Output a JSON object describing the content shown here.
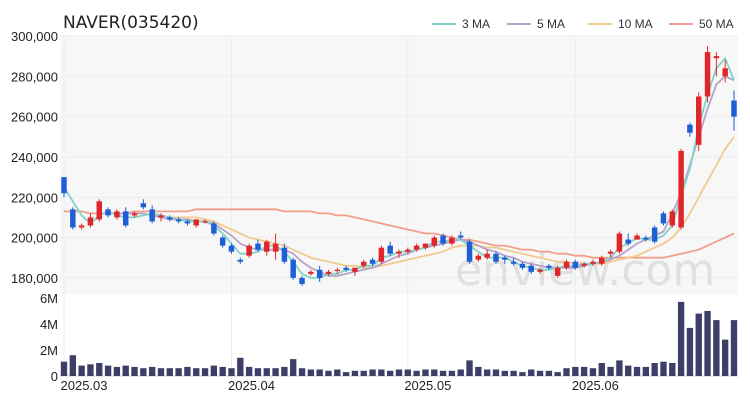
{
  "chart_data": {
    "type": "candlestick",
    "title": "NAVER(035420)",
    "watermark": "enview.com",
    "legend": [
      {
        "label": "3 MA",
        "color": "#7fd3c8"
      },
      {
        "label": "5 MA",
        "color": "#b7a3c9"
      },
      {
        "label": "10 MA",
        "color": "#f2c98e"
      },
      {
        "label": "50 MA",
        "color": "#f0a08a"
      }
    ],
    "legend_placement": "top-right",
    "price_axis": {
      "ylim": [
        172000,
        300000
      ],
      "ticks": [
        300000,
        280000,
        260000,
        240000,
        220000,
        200000,
        180000
      ],
      "tick_labels": [
        "300,000",
        "280,000",
        "260,000",
        "240,000",
        "220,000",
        "200,000",
        "180,000"
      ]
    },
    "volume_axis": {
      "ylim": [
        0,
        6000000
      ],
      "ticks": [
        0,
        2000000,
        4000000,
        6000000
      ],
      "tick_labels": [
        "0",
        "2M",
        "4M",
        "6M"
      ]
    },
    "x_tick_labels": [
      {
        "label": "2025.03",
        "index": 0
      },
      {
        "label": "2025.04",
        "index": 19
      },
      {
        "label": "2025.05",
        "index": 39
      },
      {
        "label": "2025.06",
        "index": 58
      }
    ],
    "colors": {
      "up": "#e0262b",
      "down": "#1e5fd6",
      "volume": "#3d3f68",
      "grid": "#ececec"
    },
    "ohlc": [
      [
        230000,
        230000,
        220000,
        222000
      ],
      [
        214000,
        215000,
        204000,
        205000
      ],
      [
        205000,
        207000,
        204000,
        206000
      ],
      [
        206000,
        212000,
        205000,
        210000
      ],
      [
        209000,
        219000,
        208000,
        218000
      ],
      [
        214000,
        215000,
        210000,
        211000
      ],
      [
        210000,
        214000,
        209000,
        213000
      ],
      [
        213000,
        215000,
        205000,
        206000
      ],
      [
        211000,
        213000,
        210000,
        212000
      ],
      [
        217000,
        219000,
        214000,
        215000
      ],
      [
        214000,
        216000,
        207000,
        208000
      ],
      [
        210000,
        212000,
        208000,
        211000
      ],
      [
        210000,
        211000,
        208000,
        209000
      ],
      [
        209000,
        210000,
        207000,
        208000
      ],
      [
        208000,
        209000,
        206000,
        207000
      ],
      [
        206000,
        209000,
        205000,
        209000
      ],
      [
        208000,
        209000,
        207000,
        208000
      ],
      [
        207000,
        208000,
        201000,
        202000
      ],
      [
        200000,
        201000,
        195000,
        196000
      ],
      [
        196000,
        197000,
        192000,
        193000
      ],
      [
        189000,
        190000,
        187000,
        188000
      ],
      [
        191000,
        197000,
        190000,
        196000
      ],
      [
        197000,
        199000,
        193000,
        194000
      ],
      [
        193000,
        199000,
        191000,
        198000
      ],
      [
        193000,
        202000,
        189000,
        197000
      ],
      [
        195000,
        197000,
        187000,
        188000
      ],
      [
        189000,
        190000,
        179000,
        180000
      ],
      [
        180000,
        181000,
        176000,
        177000
      ],
      [
        182000,
        184000,
        181000,
        183000
      ],
      [
        184000,
        186000,
        178000,
        180000
      ],
      [
        182000,
        184000,
        181000,
        183000
      ],
      [
        184000,
        185000,
        182000,
        184000
      ],
      [
        185000,
        186000,
        183000,
        184000
      ],
      [
        183000,
        185000,
        181000,
        185000
      ],
      [
        186000,
        189000,
        185000,
        188000
      ],
      [
        189000,
        190000,
        186000,
        187000
      ],
      [
        188000,
        196000,
        187000,
        195000
      ],
      [
        196000,
        198000,
        191000,
        192000
      ],
      [
        192000,
        194000,
        190000,
        193000
      ],
      [
        193000,
        195000,
        192000,
        194000
      ],
      [
        194000,
        197000,
        193000,
        196000
      ],
      [
        195000,
        197000,
        194000,
        197000
      ],
      [
        196000,
        201000,
        195000,
        200000
      ],
      [
        201000,
        202000,
        196000,
        197000
      ],
      [
        197000,
        201000,
        196000,
        200000
      ],
      [
        201000,
        203000,
        199000,
        200000
      ],
      [
        198000,
        199000,
        187000,
        188000
      ],
      [
        189000,
        192000,
        188000,
        191000
      ],
      [
        190000,
        194000,
        189000,
        192000
      ],
      [
        192000,
        193000,
        187000,
        188000
      ],
      [
        190000,
        191000,
        187000,
        189000
      ],
      [
        188000,
        190000,
        186000,
        187000
      ],
      [
        187000,
        188000,
        184000,
        185000
      ],
      [
        186000,
        187000,
        182000,
        183000
      ],
      [
        183000,
        185000,
        182000,
        184000
      ],
      [
        186000,
        187000,
        184000,
        185000
      ],
      [
        181000,
        186000,
        180000,
        185000
      ],
      [
        185000,
        189000,
        184000,
        188000
      ],
      [
        188000,
        189000,
        184000,
        185000
      ],
      [
        186000,
        188000,
        185000,
        187000
      ],
      [
        187000,
        189000,
        186000,
        188000
      ],
      [
        187000,
        191000,
        186000,
        190000
      ],
      [
        192000,
        194000,
        190000,
        193000
      ],
      [
        193000,
        203000,
        192000,
        202000
      ],
      [
        199000,
        202000,
        196000,
        197000
      ],
      [
        199000,
        202000,
        199000,
        201000
      ],
      [
        200000,
        201000,
        198000,
        199000
      ],
      [
        205000,
        206000,
        197000,
        198000
      ],
      [
        212000,
        213000,
        206000,
        207000
      ],
      [
        206000,
        214000,
        205000,
        213000
      ],
      [
        205000,
        244000,
        204000,
        243000
      ],
      [
        256000,
        257000,
        250000,
        252000
      ],
      [
        246000,
        272000,
        243000,
        270000
      ],
      [
        270000,
        295000,
        267000,
        292000
      ],
      [
        289000,
        292000,
        280000,
        290000
      ],
      [
        280000,
        288000,
        277000,
        284000
      ],
      [
        268000,
        273000,
        253000,
        260000
      ]
    ],
    "volume": [
      1100000,
      1600000,
      800000,
      900000,
      1000000,
      800000,
      700000,
      800000,
      700000,
      600000,
      700000,
      600000,
      600000,
      600000,
      700000,
      600000,
      600000,
      800000,
      700000,
      600000,
      1400000,
      700000,
      600000,
      600000,
      600000,
      700000,
      1300000,
      600000,
      500000,
      500000,
      400000,
      500000,
      300000,
      400000,
      400000,
      500000,
      500000,
      400000,
      500000,
      500000,
      400000,
      500000,
      500000,
      400000,
      400000,
      500000,
      1200000,
      700000,
      500000,
      500000,
      400000,
      400000,
      300000,
      500000,
      400000,
      400000,
      300000,
      600000,
      700000,
      700000,
      600000,
      1000000,
      700000,
      1200000,
      800000,
      700000,
      700000,
      1000000,
      1100000,
      1000000,
      5700000,
      3700000,
      4800000,
      5000000,
      4300000,
      2800000,
      4300000
    ],
    "ma3": [
      225000,
      218000,
      211000,
      207000,
      211000,
      213000,
      211000,
      210000,
      210000,
      211000,
      212000,
      211000,
      210000,
      209000,
      208000,
      208000,
      208000,
      206000,
      202000,
      197000,
      192000,
      192000,
      193000,
      196000,
      196000,
      193000,
      188000,
      182000,
      180000,
      180000,
      182000,
      182000,
      184000,
      184000,
      186000,
      186000,
      190000,
      191000,
      193000,
      193000,
      194000,
      195000,
      198000,
      198000,
      199000,
      199000,
      196000,
      193000,
      190000,
      190000,
      190000,
      188000,
      186000,
      185000,
      184000,
      184000,
      185000,
      186000,
      186000,
      187000,
      187000,
      188000,
      190000,
      195000,
      197000,
      200000,
      199000,
      199000,
      201000,
      206000,
      221000,
      234000,
      255000,
      271000,
      284000,
      289000,
      278000
    ],
    "ma5": [
      null,
      null,
      null,
      null,
      212000,
      212000,
      212000,
      212000,
      212000,
      212000,
      211000,
      210000,
      209000,
      209000,
      209000,
      208000,
      208000,
      207000,
      204000,
      201000,
      197000,
      195000,
      194000,
      194000,
      194000,
      194000,
      192000,
      188000,
      185000,
      183000,
      181000,
      181000,
      182000,
      183000,
      184000,
      185000,
      187000,
      189000,
      191000,
      192000,
      194000,
      195000,
      196000,
      197000,
      198000,
      199000,
      198000,
      196000,
      194000,
      193000,
      191000,
      190000,
      188000,
      187000,
      186000,
      185000,
      185000,
      185000,
      185000,
      186000,
      187000,
      188000,
      189000,
      191000,
      194000,
      197000,
      199000,
      201000,
      203000,
      212000,
      222000,
      236000,
      250000,
      264000,
      276000,
      280000,
      278000
    ],
    "ma10": [
      null,
      null,
      null,
      null,
      null,
      null,
      null,
      null,
      null,
      212000,
      211000,
      211000,
      210000,
      210000,
      210000,
      210000,
      209000,
      208000,
      206000,
      204000,
      202000,
      200000,
      199000,
      198000,
      197000,
      196000,
      194000,
      192000,
      190000,
      189000,
      188000,
      187000,
      186000,
      186000,
      185000,
      185000,
      186000,
      187000,
      188000,
      189000,
      190000,
      191000,
      192000,
      193000,
      195000,
      196000,
      196000,
      196000,
      195000,
      195000,
      194000,
      193000,
      192000,
      191000,
      190000,
      189000,
      188000,
      188000,
      187000,
      187000,
      187000,
      187000,
      188000,
      189000,
      190000,
      191000,
      193000,
      195000,
      197000,
      200000,
      205000,
      212000,
      220000,
      228000,
      236000,
      244000,
      250000
    ],
    "ma50": [
      213000,
      213000,
      213000,
      212000,
      212000,
      212000,
      212000,
      212000,
      213000,
      213000,
      213000,
      213000,
      213000,
      213000,
      213000,
      214000,
      214000,
      214000,
      214000,
      214000,
      214000,
      214000,
      214000,
      214000,
      214000,
      213000,
      213000,
      213000,
      213000,
      212000,
      212000,
      211000,
      211000,
      210000,
      209000,
      208000,
      207000,
      206000,
      205000,
      204000,
      203000,
      202000,
      202000,
      201000,
      200000,
      199000,
      199000,
      198000,
      197000,
      196000,
      196000,
      195000,
      194000,
      194000,
      193000,
      193000,
      192000,
      192000,
      191000,
      191000,
      190000,
      190000,
      190000,
      190000,
      190000,
      190000,
      190000,
      190000,
      190000,
      191000,
      192000,
      193000,
      194000,
      196000,
      198000,
      200000,
      202000
    ]
  }
}
